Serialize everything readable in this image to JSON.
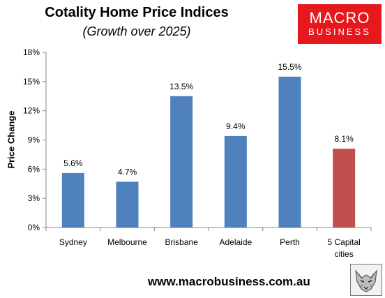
{
  "header": {
    "title": "Cotality Home Price Indices",
    "subtitle": "(Growth over 2025)"
  },
  "logo": {
    "line1": "MACRO",
    "line2": "BUSINESS"
  },
  "footer": {
    "website": "www.macrobusiness.com.au",
    "mascot_icon": "wolf-head-icon"
  },
  "colors": {
    "bar": "#4f81bd",
    "highlight_bar": "#c0504d",
    "logo_bg": "#e5191d"
  },
  "chart_data": {
    "type": "bar",
    "title": "Cotality Home Price Indices",
    "subtitle": "(Growth over 2025)",
    "xlabel": "",
    "ylabel": "Price Change",
    "ylim": [
      0,
      18
    ],
    "yticks": [
      0,
      3,
      6,
      9,
      12,
      15,
      18
    ],
    "ytick_labels": [
      "0%",
      "3%",
      "6%",
      "9%",
      "12%",
      "15%",
      "18%"
    ],
    "grid": false,
    "legend": "none",
    "categories": [
      [
        "Sydney"
      ],
      [
        "Melbourne"
      ],
      [
        "Brisbane"
      ],
      [
        "Adelaide"
      ],
      [
        "Perth"
      ],
      [
        "5 Capital",
        "cities"
      ]
    ],
    "values": [
      5.6,
      4.7,
      13.5,
      9.4,
      15.5,
      8.1
    ],
    "value_labels": [
      "5.6%",
      "4.7%",
      "13.5%",
      "9.4%",
      "15.5%",
      "8.1%"
    ],
    "highlight_index": 5
  }
}
